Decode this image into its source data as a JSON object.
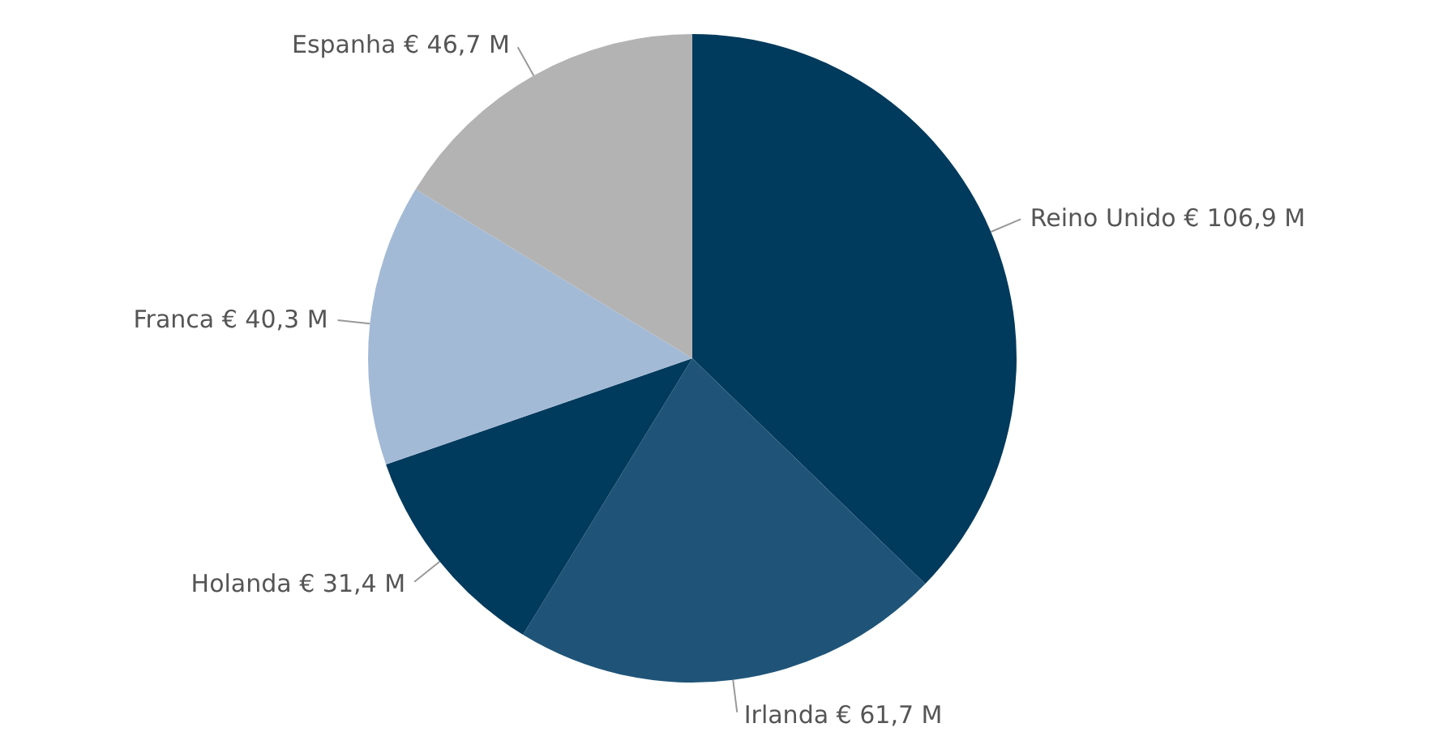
{
  "chart_data": {
    "type": "pie",
    "categories": [
      "Reino Unido",
      "Irlanda",
      "Holanda",
      "Franca",
      "Espanha"
    ],
    "values": [
      106.9,
      61.7,
      31.4,
      40.3,
      46.7
    ],
    "colors": [
      "#003a5c",
      "#1f5478",
      "#003a5c",
      "#a3bad6",
      "#b3b3b3"
    ],
    "value_labels": [
      "€ 106,9 M",
      "€ 61,7 M",
      "€ 31,4 M",
      "€ 40,3 M",
      "€ 46,7 M"
    ],
    "legend": false
  }
}
